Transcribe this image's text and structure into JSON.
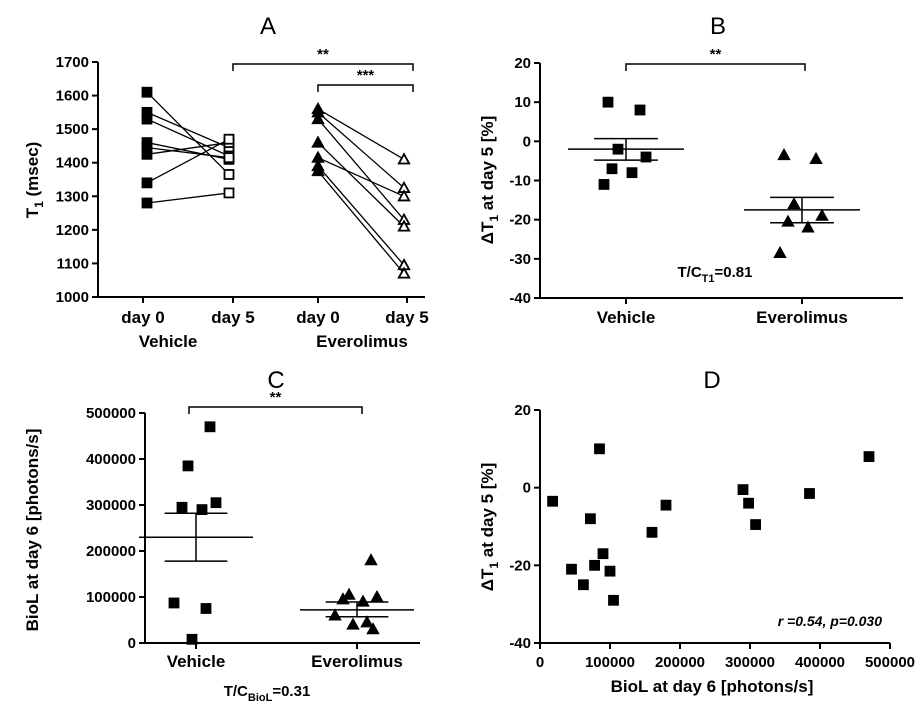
{
  "chart_data": [
    {
      "panel": "A",
      "type": "line",
      "ylabel": "T",
      "ylabel_sub": "1",
      "ylabel_unit": " (msec)",
      "ylim": [
        1000,
        1700
      ],
      "yticks": [
        1000,
        1100,
        1200,
        1300,
        1400,
        1500,
        1600,
        1700
      ],
      "xticks": [
        "day 0",
        "day 5",
        "day 0",
        "day 5"
      ],
      "group_labels": [
        "Vehicle",
        "Everolimus"
      ],
      "series": [
        {
          "group": "Vehicle",
          "day0": [
            1610,
            1550,
            1530,
            1460,
            1445,
            1425,
            1340,
            1280
          ],
          "day5": [
            1365,
            1445,
            1420,
            1410,
            1415,
            1460,
            1470,
            1310
          ]
        },
        {
          "group": "Everolimus",
          "day0": [
            1560,
            1550,
            1530,
            1460,
            1415,
            1390,
            1375
          ],
          "day5": [
            1410,
            1325,
            1230,
            1210,
            1300,
            1095,
            1070
          ]
        }
      ],
      "significance": [
        {
          "label": "**",
          "from": "Vehicle day 5",
          "to": "Everolimus day 5"
        },
        {
          "label": "***",
          "from": "Everolimus day 0",
          "to": "Everolimus day 5"
        }
      ]
    },
    {
      "panel": "B",
      "type": "scatter",
      "ylabel": "ΔT",
      "ylabel_sub": "1",
      "ylabel_unit": " at day 5 [%]",
      "ylim": [
        -40,
        20
      ],
      "yticks": [
        -40,
        -30,
        -20,
        -10,
        0,
        10,
        20
      ],
      "categories": [
        "Vehicle",
        "Everolimus"
      ],
      "series": [
        {
          "name": "Vehicle",
          "marker": "square",
          "values": [
            10,
            8,
            -2,
            -4,
            -7,
            -8,
            -11
          ],
          "mean": -2,
          "sem_range": [
            -4.8,
            0.7
          ]
        },
        {
          "name": "Everolimus",
          "marker": "triangle",
          "values": [
            -3.5,
            -4.5,
            -16,
            -19,
            -20.5,
            -22,
            -28.5
          ],
          "mean": -17.5,
          "sem_range": [
            -20.8,
            -14.3
          ]
        }
      ],
      "significance": [
        {
          "label": "**",
          "from": "Vehicle",
          "to": "Everolimus"
        }
      ],
      "annotation": {
        "text": "T/C",
        "sub": "T1",
        "suffix": "=0.81"
      }
    },
    {
      "panel": "C",
      "type": "scatter",
      "ylabel": "BioL at day 6 [photons/s]",
      "ylim": [
        0,
        500000
      ],
      "yticks": [
        0,
        100000,
        200000,
        300000,
        400000,
        500000
      ],
      "categories": [
        "Vehicle",
        "Everolimus"
      ],
      "series": [
        {
          "name": "Vehicle",
          "marker": "square",
          "values": [
            470000,
            385000,
            305000,
            295000,
            290000,
            87000,
            75000,
            8000
          ],
          "mean": 230000,
          "sem_range": [
            178000,
            282000
          ]
        },
        {
          "name": "Everolimus",
          "marker": "triangle",
          "values": [
            180000,
            105000,
            100000,
            95000,
            90000,
            60000,
            45000,
            40000,
            30000
          ],
          "mean": 72000,
          "sem_range": [
            57000,
            89000
          ]
        }
      ],
      "significance": [
        {
          "label": "**",
          "from": "Vehicle",
          "to": "Everolimus"
        }
      ],
      "annotation": {
        "text": "T/C",
        "sub": "BioL",
        "suffix": "=0.31"
      }
    },
    {
      "panel": "D",
      "type": "scatter",
      "xlabel": "BioL at day 6 [photons/s]",
      "ylabel": "ΔT",
      "ylabel_sub": "1",
      "ylabel_unit": " at day 5 [%]",
      "xlim": [
        0,
        500000
      ],
      "ylim": [
        -40,
        20
      ],
      "xticks": [
        0,
        100000,
        200000,
        300000,
        400000,
        500000
      ],
      "yticks": [
        -40,
        -20,
        0,
        20
      ],
      "points": [
        {
          "x": 18000,
          "y": -3.5
        },
        {
          "x": 45000,
          "y": -21
        },
        {
          "x": 62000,
          "y": -25
        },
        {
          "x": 72000,
          "y": -8
        },
        {
          "x": 78000,
          "y": -20
        },
        {
          "x": 85000,
          "y": 10
        },
        {
          "x": 90000,
          "y": -17
        },
        {
          "x": 100000,
          "y": -21.5
        },
        {
          "x": 105000,
          "y": -29
        },
        {
          "x": 160000,
          "y": -11.5
        },
        {
          "x": 180000,
          "y": -4.5
        },
        {
          "x": 290000,
          "y": -0.5
        },
        {
          "x": 298000,
          "y": -4
        },
        {
          "x": 308000,
          "y": -9.5
        },
        {
          "x": 385000,
          "y": -1.5
        },
        {
          "x": 470000,
          "y": 8
        }
      ],
      "annotation": "r =0.54, p=0.030"
    }
  ]
}
